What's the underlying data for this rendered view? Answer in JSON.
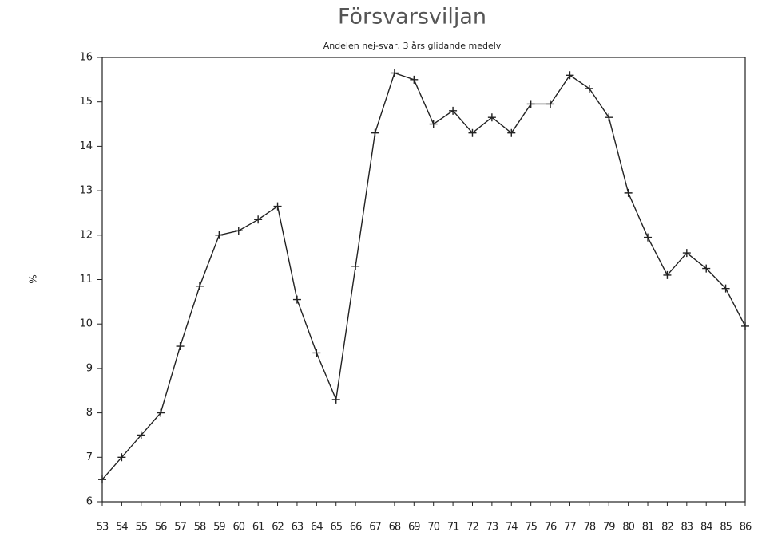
{
  "chart_data": {
    "type": "line",
    "title": "Försvarsviljan",
    "subtitle": "Andelen nej-svar, 3 års glidande medelv",
    "ylabel": "%",
    "categories": [
      "53",
      "54",
      "55",
      "56",
      "57",
      "58",
      "59",
      "60",
      "61",
      "62",
      "63",
      "64",
      "65",
      "66",
      "67",
      "68",
      "69",
      "70",
      "71",
      "72",
      "73",
      "74",
      "75",
      "76",
      "77",
      "78",
      "79",
      "80",
      "81",
      "82",
      "83",
      "84",
      "85",
      "86"
    ],
    "series": [
      {
        "name": "Andelen nej-svar",
        "color": "#222222",
        "values": [
          6.5,
          7.0,
          7.5,
          8.0,
          9.5,
          10.85,
          12.0,
          12.1,
          12.35,
          12.65,
          10.55,
          9.35,
          8.3,
          11.3,
          14.3,
          15.65,
          15.5,
          14.5,
          14.8,
          14.3,
          14.65,
          14.3,
          14.95,
          14.95,
          15.6,
          15.3,
          14.65,
          12.95,
          11.95,
          11.1,
          11.6,
          11.25,
          10.8,
          9.95
        ]
      }
    ],
    "ylim": [
      6,
      16
    ],
    "yticks": [
      6,
      7,
      8,
      9,
      10,
      11,
      12,
      13,
      14,
      15,
      16
    ],
    "marker": "+"
  }
}
